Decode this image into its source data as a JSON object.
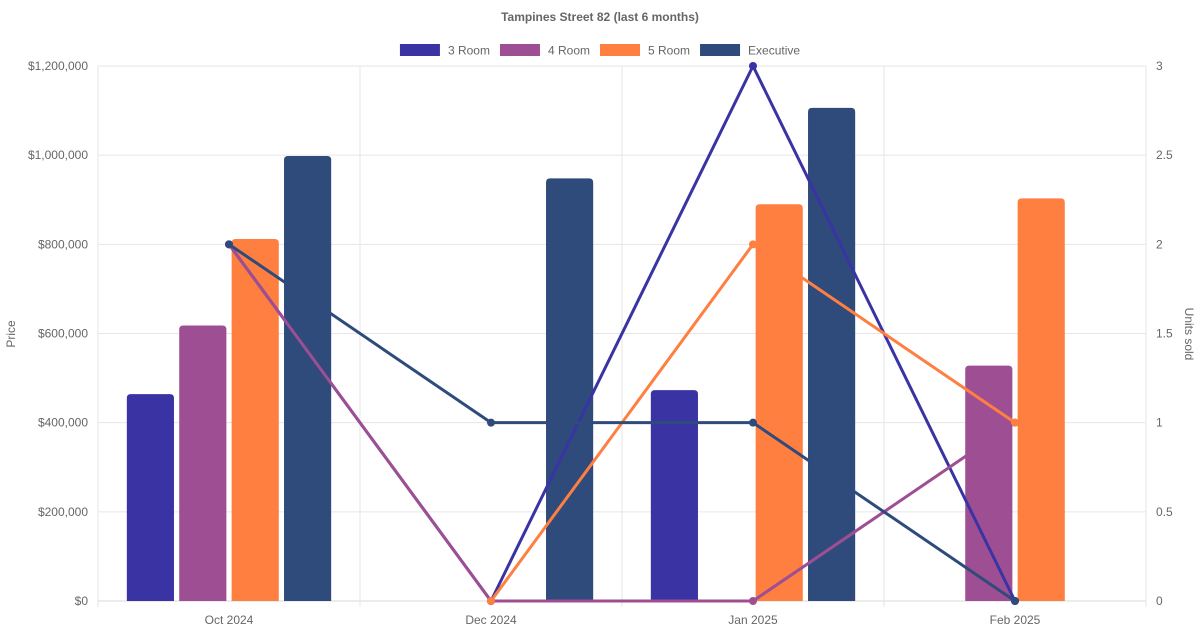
{
  "chart_data": {
    "type": "bar",
    "title": "Tampines Street 82 (last 6 months)",
    "categories": [
      "Oct 2024",
      "Dec 2024",
      "Jan 2025",
      "Feb 2025"
    ],
    "y_left_label": "Price",
    "y_right_label": "Units sold",
    "y_left_ticks": [
      "$0",
      "$200,000",
      "$400,000",
      "$600,000",
      "$800,000",
      "$1,000,000",
      "$1,200,000"
    ],
    "y_right_ticks": [
      "0",
      "0.5",
      "1",
      "1.5",
      "2",
      "2.5",
      "3"
    ],
    "y_left_lim": [
      0,
      1200000
    ],
    "y_right_lim": [
      0,
      3
    ],
    "legend_position": "top",
    "grid": true,
    "bar_series": [
      {
        "name": "3 Room",
        "color": "#3a33a3",
        "values": [
          464000,
          null,
          473000,
          null
        ]
      },
      {
        "name": "4 Room",
        "color": "#9e4f93",
        "values": [
          618000,
          null,
          null,
          528000
        ]
      },
      {
        "name": "5 Room",
        "color": "#ff7f41",
        "values": [
          812000,
          null,
          890000,
          903000
        ]
      },
      {
        "name": "Executive",
        "color": "#2f4b7c",
        "values": [
          998000,
          948000,
          1106000,
          null
        ]
      }
    ],
    "line_series": [
      {
        "name": "3 Room",
        "color": "#3a33a3",
        "values": [
          2,
          0,
          3,
          0
        ]
      },
      {
        "name": "4 Room",
        "color": "#9e4f93",
        "values": [
          2,
          0,
          0,
          1
        ]
      },
      {
        "name": "5 Room",
        "color": "#ff7f41",
        "values": [
          null,
          0,
          2,
          1
        ]
      },
      {
        "name": "Executive",
        "color": "#2f4b7c",
        "values": [
          2,
          1,
          1,
          0
        ]
      }
    ]
  }
}
